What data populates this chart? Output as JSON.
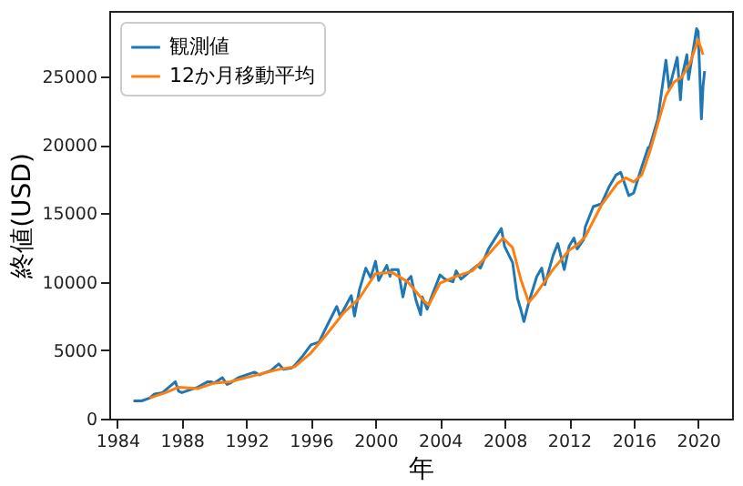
{
  "chart_data": {
    "type": "line",
    "xlabel": "年",
    "ylabel": "終値(USD)",
    "xlim": [
      1983.5,
      2022.1
    ],
    "ylim": [
      0,
      29800
    ],
    "xticks": [
      1984,
      1988,
      1992,
      1996,
      2000,
      2004,
      2008,
      2012,
      2016,
      2020
    ],
    "yticks": [
      0,
      5000,
      10000,
      15000,
      20000,
      25000
    ],
    "grid": false,
    "legend": "top left",
    "marker": "none",
    "line_style": "solid",
    "series": [
      {
        "name": "観測値",
        "color": "#1f77b4",
        "x": [
          1985.0,
          1985.5,
          1986.0,
          1986.3,
          1986.8,
          1987.0,
          1987.6,
          1987.8,
          1988.0,
          1988.5,
          1989.0,
          1989.6,
          1989.8,
          1990.0,
          1990.5,
          1990.8,
          1991.0,
          1991.5,
          1992.0,
          1992.5,
          1992.8,
          1993.0,
          1993.5,
          1994.0,
          1994.3,
          1994.8,
          1995.0,
          1995.5,
          1996.0,
          1996.5,
          1997.0,
          1997.6,
          1997.8,
          1998.0,
          1998.5,
          1998.7,
          1999.0,
          1999.4,
          1999.7,
          2000.0,
          2000.2,
          2000.7,
          2000.9,
          2001.0,
          2001.4,
          2001.7,
          2001.9,
          2002.2,
          2002.5,
          2002.8,
          2002.9,
          2003.2,
          2003.5,
          2004.0,
          2004.3,
          2004.8,
          2005.0,
          2005.3,
          2005.9,
          2006.3,
          2006.5,
          2007.0,
          2007.8,
          2008.0,
          2008.5,
          2008.8,
          2009.0,
          2009.2,
          2009.5,
          2010.0,
          2010.3,
          2010.5,
          2011.0,
          2011.3,
          2011.7,
          2012.0,
          2012.3,
          2012.5,
          2012.9,
          2013.0,
          2013.5,
          2014.0,
          2014.5,
          2014.9,
          2015.2,
          2015.7,
          2016.0,
          2016.5,
          2016.9,
          2017.0,
          2017.5,
          2018.0,
          2018.2,
          2018.7,
          2018.9,
          2019.0,
          2019.3,
          2019.4,
          2019.9,
          2020.0,
          2020.2,
          2020.3,
          2020.4
        ],
        "values": [
          1300,
          1300,
          1500,
          1800,
          1900,
          2100,
          2700,
          2000,
          1900,
          2100,
          2300,
          2700,
          2700,
          2600,
          3000,
          2500,
          2600,
          3000,
          3200,
          3400,
          3200,
          3300,
          3500,
          4000,
          3600,
          3700,
          3900,
          4600,
          5400,
          5600,
          6800,
          8200,
          7500,
          7900,
          9000,
          7500,
          9400,
          11000,
          10300,
          11500,
          10100,
          11200,
          10400,
          10900,
          10900,
          8900,
          10000,
          10400,
          8700,
          7600,
          8900,
          8000,
          9000,
          10500,
          10200,
          10000,
          10800,
          10200,
          10800,
          11200,
          11000,
          12400,
          13900,
          12600,
          11400,
          8800,
          8000,
          7100,
          8500,
          10400,
          11000,
          9800,
          11900,
          12800,
          10900,
          12600,
          13200,
          12400,
          13100,
          14000,
          15500,
          15700,
          17000,
          17800,
          18000,
          16300,
          16500,
          18400,
          19800,
          19900,
          21900,
          26200,
          24100,
          26400,
          23300,
          25000,
          26600,
          24800,
          28500,
          28300,
          21900,
          24300,
          25400
        ]
      },
      {
        "name": "12か月移動平均",
        "color": "#ff7f0e",
        "x": [
          1986.0,
          1987.0,
          1987.8,
          1989.0,
          1990.0,
          1991.0,
          1992.0,
          1993.0,
          1994.0,
          1995.0,
          1996.0,
          1997.0,
          1998.0,
          1999.0,
          2000.0,
          2001.0,
          2002.0,
          2003.0,
          2003.3,
          2004.0,
          2005.0,
          2006.0,
          2007.0,
          2007.9,
          2008.5,
          2009.0,
          2009.5,
          2010.0,
          2011.0,
          2012.0,
          2012.5,
          2013.0,
          2014.0,
          2015.0,
          2015.5,
          2016.0,
          2016.5,
          2017.0,
          2018.0,
          2018.5,
          2019.0,
          2019.5,
          2020.0,
          2020.3
        ],
        "values": [
          1500,
          1900,
          2300,
          2200,
          2600,
          2700,
          3000,
          3300,
          3600,
          3800,
          4800,
          6200,
          7700,
          8800,
          10600,
          10700,
          10000,
          8600,
          8300,
          9900,
          10400,
          10800,
          12000,
          13200,
          12500,
          10200,
          8500,
          9200,
          10900,
          12300,
          12700,
          13300,
          15600,
          17200,
          17600,
          17300,
          17800,
          19500,
          23600,
          24600,
          25000,
          26000,
          27700,
          26600
        ]
      }
    ]
  }
}
